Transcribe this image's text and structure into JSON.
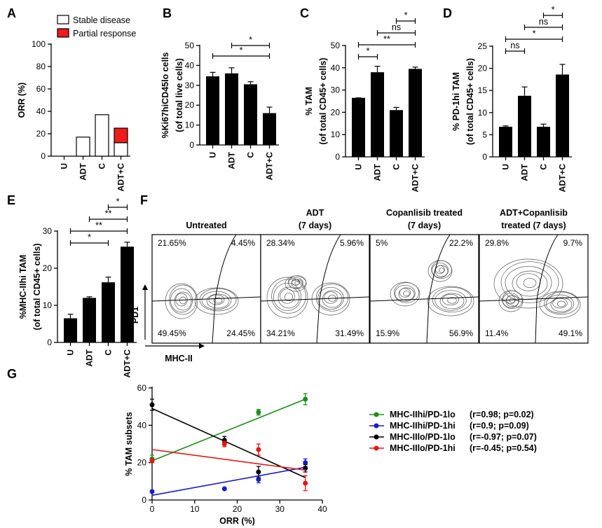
{
  "chart_data": [
    {
      "panel": "A",
      "type": "bar",
      "stacked": true,
      "categories": [
        "U",
        "ADT",
        "C",
        "ADT+C"
      ],
      "series": [
        {
          "name": "Stable disease",
          "color": "#ffffff",
          "values": [
            0,
            17,
            37,
            12
          ]
        },
        {
          "name": "Partial response",
          "color": "#ee1c1c",
          "values": [
            0,
            0,
            0,
            13
          ]
        }
      ],
      "ylabel": "ORR (%)",
      "ylim": [
        0,
        100
      ],
      "yticks": [
        "0",
        "20",
        "40",
        "60",
        "80",
        "100"
      ]
    },
    {
      "panel": "B",
      "type": "bar",
      "categories": [
        "U",
        "ADT",
        "C",
        "ADT+C"
      ],
      "values": [
        34.5,
        36,
        30.5,
        16
      ],
      "errors": [
        2,
        2.8,
        1.3,
        3
      ],
      "ylabel_lines": [
        "%Ki67hiCD45lo cells",
        "(of total live cells)"
      ],
      "ylim": [
        0,
        50
      ],
      "yticks": [
        "0",
        "10",
        "20",
        "30",
        "40",
        "50"
      ],
      "sig": [
        {
          "from": 0,
          "to": 3,
          "label": "*"
        },
        {
          "from": 1,
          "to": 3,
          "label": "*"
        }
      ]
    },
    {
      "panel": "C",
      "type": "bar",
      "categories": [
        "U",
        "ADT",
        "C",
        "ADT+C"
      ],
      "values": [
        26.5,
        38,
        21,
        39.5
      ],
      "errors": [
        0,
        2.7,
        1.2,
        0.8
      ],
      "ylabel_lines": [
        "% TAM",
        "(of total CD45+ cells)"
      ],
      "ylim": [
        0,
        50
      ],
      "yticks": [
        "0",
        "10",
        "20",
        "30",
        "40",
        "50"
      ],
      "sig": [
        {
          "from": 0,
          "to": 1,
          "label": "*"
        },
        {
          "from": 0,
          "to": 3,
          "label": "**"
        },
        {
          "from": 1,
          "to": 3,
          "label": "ns"
        },
        {
          "from": 2,
          "to": 3,
          "label": "*"
        }
      ]
    },
    {
      "panel": "D",
      "type": "bar",
      "categories": [
        "U",
        "ADT",
        "C",
        "ADT+C"
      ],
      "values": [
        6.8,
        13.8,
        6.8,
        18.6
      ],
      "errors": [
        0.2,
        2,
        0.6,
        2.3
      ],
      "ylabel_lines": [
        "% PD-1hi TAM",
        "(of total CD45+ cells)"
      ],
      "ylim": [
        0,
        25
      ],
      "yticks": [
        "0",
        "5",
        "10",
        "15",
        "20",
        "25"
      ],
      "sig": [
        {
          "from": 0,
          "to": 1,
          "label": "ns"
        },
        {
          "from": 0,
          "to": 3,
          "label": "*"
        },
        {
          "from": 1,
          "to": 3,
          "label": "ns"
        },
        {
          "from": 2,
          "to": 3,
          "label": "*"
        }
      ]
    },
    {
      "panel": "E",
      "type": "bar",
      "categories": [
        "U",
        "ADT",
        "C",
        "ADT+C"
      ],
      "values": [
        6.5,
        12,
        16.2,
        25.8
      ],
      "errors": [
        1.1,
        0.3,
        1.4,
        1.2
      ],
      "ylabel_lines": [
        "%MHC-IIhi TAM",
        "(of total CD45+ cells)"
      ],
      "ylim": [
        0,
        30
      ],
      "yticks": [
        "0",
        "10",
        "20",
        "30"
      ],
      "sig": [
        {
          "from": 0,
          "to": 2,
          "label": "*"
        },
        {
          "from": 0,
          "to": 3,
          "label": "**"
        },
        {
          "from": 1,
          "to": 3,
          "label": "**"
        },
        {
          "from": 2,
          "to": 3,
          "label": "*"
        }
      ]
    },
    {
      "panel": "G",
      "type": "scatter",
      "xlabel": "ORR (%)",
      "ylabel": "% TAM subsets",
      "xlim": [
        0,
        40
      ],
      "ylim": [
        0,
        60
      ],
      "xticks": [
        "0",
        "10",
        "20",
        "30",
        "40"
      ],
      "yticks": [
        "0",
        "20",
        "40",
        "60"
      ],
      "series": [
        {
          "name": "MHC-IIhi/PD-1lo",
          "stats": "(r=0.98; p=0.02)",
          "color": "#1e8c1e",
          "x": [
            0,
            17,
            25,
            36
          ],
          "y": [
            22,
            31,
            47,
            54
          ],
          "err": [
            2,
            0,
            1.5,
            3
          ],
          "fit": [
            21,
            54
          ]
        },
        {
          "name": "MHC-IIhi/PD-1hi",
          "stats": "(r=0.9; p=0.09)",
          "color": "#1a1acc",
          "x": [
            0,
            17,
            25,
            36
          ],
          "y": [
            4.5,
            6,
            11,
            20
          ],
          "err": [
            0,
            0,
            1.8,
            2
          ],
          "fit": [
            2.5,
            17.5
          ]
        },
        {
          "name": "MHC-IIlo/PD-1lo",
          "stats": "(r=-0.97; p=0.07)",
          "color": "#000000",
          "x": [
            0,
            17,
            25,
            36
          ],
          "y": [
            51,
            32,
            15,
            17
          ],
          "err": [
            3,
            2,
            3,
            2
          ],
          "fit": [
            49,
            12
          ]
        },
        {
          "name": "MHC-IIlo/PD-1hi",
          "stats": "(r=-0.45; p=0.54)",
          "color": "#e01818",
          "x": [
            0,
            17,
            25,
            36
          ],
          "y": [
            21,
            30,
            27,
            9
          ],
          "err": [
            1,
            1.5,
            3,
            4
          ],
          "fit": [
            27,
            16
          ]
        }
      ]
    }
  ],
  "panel_labels": {
    "A": "A",
    "B": "B",
    "C": "C",
    "D": "D",
    "E": "E",
    "F": "F",
    "G": "G"
  },
  "legend_a": {
    "stable": "Stable disease",
    "partial": "Partial response"
  },
  "flow": {
    "axis_y": "PD1",
    "axis_x": "MHC-II",
    "panels": [
      {
        "title1": "Untreated",
        "title2": "",
        "q": [
          "21.65%",
          "4.45%",
          "49.45%",
          "24.45%"
        ]
      },
      {
        "title1": "ADT",
        "title2": "(7 days)",
        "q": [
          "28.34%",
          "5.96%",
          "34.21%",
          "31.49%"
        ]
      },
      {
        "title1": "Copanlisib treated",
        "title2": "(7 days)",
        "q": [
          "5%",
          "22.2%",
          "15.9%",
          "56.9%"
        ]
      },
      {
        "title1": "ADT+Copanlisib",
        "title2": "treated (7 days)",
        "q": [
          "29.8%",
          "9.7%",
          "11.4%",
          "49.1%"
        ]
      }
    ]
  }
}
